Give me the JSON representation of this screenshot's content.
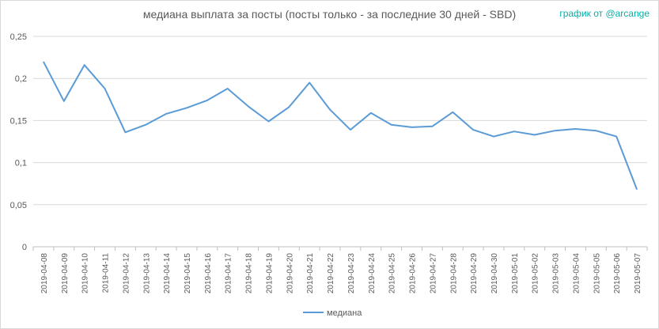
{
  "title": "медиана выплата за посты  (посты только - за последние 30 дней - SBD)",
  "credit": "график от @arcange",
  "chart_data": {
    "type": "line",
    "title": "медиана выплата за посты  (посты только - за последние 30 дней - SBD)",
    "xlabel": "",
    "ylabel": "",
    "ylim": [
      0,
      0.25
    ],
    "yticks": [
      0,
      0.05,
      0.1,
      0.15,
      0.2,
      0.25
    ],
    "yticklabels": [
      "0",
      "0,05",
      "0,1",
      "0,15",
      "0,2",
      "0,25"
    ],
    "grid": true,
    "legend": "bottom",
    "categories": [
      "2019-04-08",
      "2019-04-09",
      "2019-04-10",
      "2019-04-11",
      "2019-04-12",
      "2019-04-13",
      "2019-04-14",
      "2019-04-15",
      "2019-04-16",
      "2019-04-17",
      "2019-04-18",
      "2019-04-19",
      "2019-04-20",
      "2019-04-21",
      "2019-04-22",
      "2019-04-23",
      "2019-04-24",
      "2019-04-25",
      "2019-04-26",
      "2019-04-27",
      "2019-04-28",
      "2019-04-29",
      "2019-04-30",
      "2019-05-01",
      "2019-05-02",
      "2019-05-03",
      "2019-05-04",
      "2019-05-05",
      "2019-05-06",
      "2019-05-07"
    ],
    "series": [
      {
        "name": "медиана",
        "color": "#5b9bd5",
        "values": [
          0.22,
          0.173,
          0.216,
          0.188,
          0.136,
          0.145,
          0.158,
          0.165,
          0.174,
          0.188,
          0.167,
          0.149,
          0.166,
          0.195,
          0.163,
          0.139,
          0.159,
          0.145,
          0.142,
          0.143,
          0.16,
          0.139,
          0.131,
          0.137,
          0.133,
          0.138,
          0.14,
          0.138,
          0.131,
          0.068
        ]
      }
    ]
  }
}
